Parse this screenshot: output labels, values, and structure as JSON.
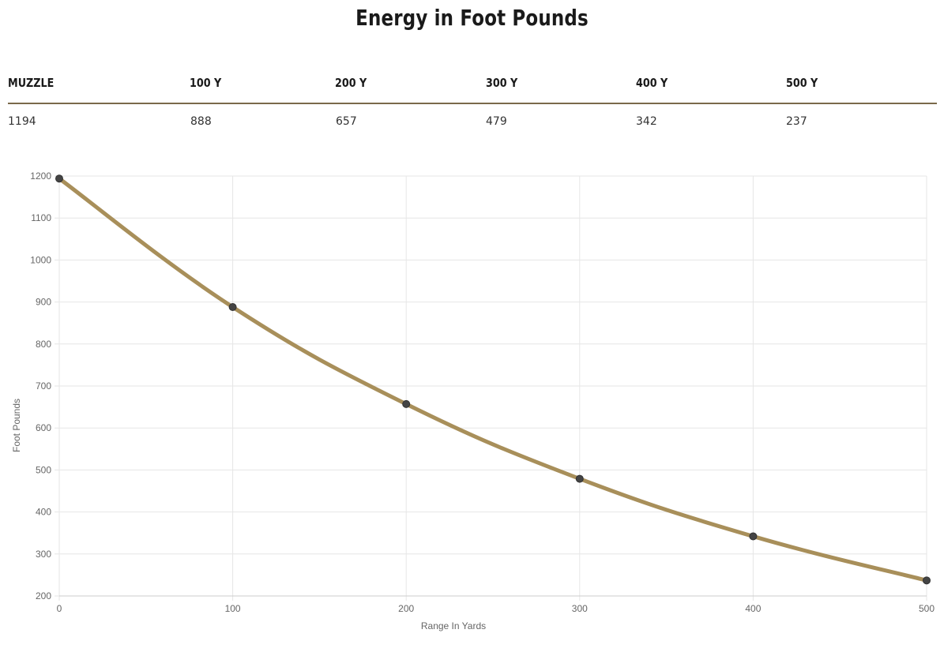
{
  "title": "Energy in Foot Pounds",
  "table": {
    "headers": [
      "MUZZLE",
      "100 Y",
      "200 Y",
      "300 Y",
      "400 Y",
      "500 Y"
    ],
    "values": [
      "1194",
      "888",
      "657",
      "479",
      "342",
      "237"
    ]
  },
  "colors": {
    "line": "#a88f5a",
    "point": "#444444",
    "grid": "#e6e6e6",
    "rule": "#7a6a4a"
  },
  "chart_data": {
    "type": "line",
    "x": [
      0,
      100,
      200,
      300,
      400,
      500
    ],
    "series": [
      {
        "values": [
          1194,
          888,
          657,
          479,
          342,
          237
        ]
      }
    ],
    "xlabel": "Range In Yards",
    "ylabel": "Foot Pounds",
    "xlim": [
      0,
      500
    ],
    "ylim": [
      200,
      1200
    ],
    "xticks": [
      "0",
      "100",
      "200",
      "300",
      "400",
      "500"
    ],
    "yticks": [
      "200",
      "300",
      "400",
      "500",
      "600",
      "700",
      "800",
      "900",
      "1000",
      "1100",
      "1200"
    ],
    "grid": true,
    "legend": "none"
  }
}
